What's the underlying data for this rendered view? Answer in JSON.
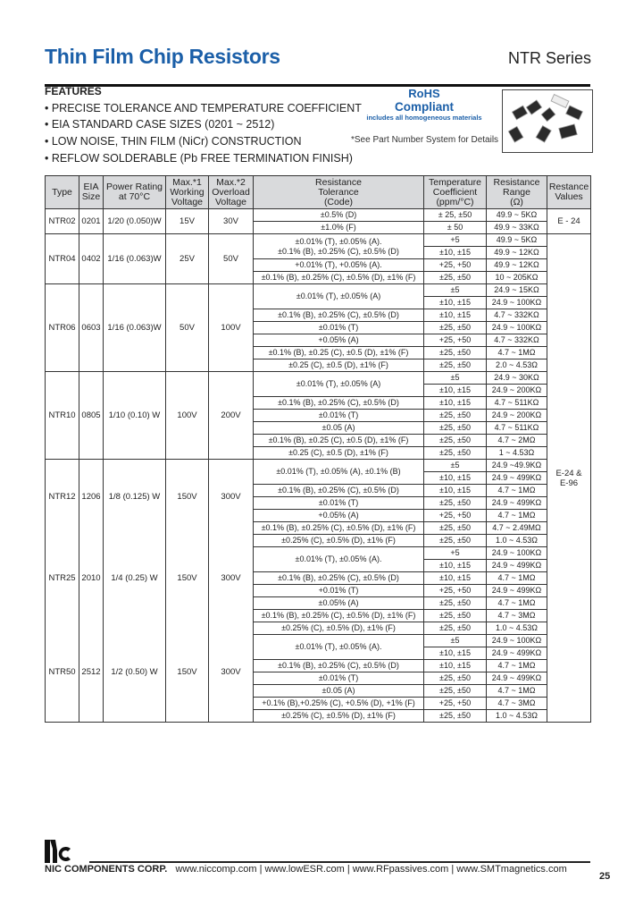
{
  "header": {
    "title": "Thin Film Chip Resistors",
    "series": "NTR Series"
  },
  "features": {
    "heading": "FEATURES",
    "items": [
      "• PRECISE TOLERANCE AND TEMPERATURE COEFFICIENT",
      "• EIA STANDARD CASE SIZES (0201 ~ 2512)",
      "• LOW NOISE, THIN FILM (NiCr) CONSTRUCTION",
      "• REFLOW SOLDERABLE (Pb FREE TERMINATION FINISH)"
    ]
  },
  "rohs": {
    "line1": "RoHS",
    "line2": "Compliant",
    "line3": "includes all homogeneous materials",
    "note": "*See Part Number System for Details",
    "color": "#1b5fa8"
  },
  "table": {
    "headers": [
      "Type",
      "EIA\nSize",
      "Power Rating\nat 70°C",
      "Max.*1\nWorking\nVoltage",
      "Max.*2\nOverload\nVoltage",
      "Resistance\nTolerance\n(Code)",
      "Temperature\nCoefficient\n(ppm/°C)",
      "Resistance\nRange\n(Ω)",
      "Restance\nValues"
    ],
    "values_column": [
      {
        "label": "E - 24",
        "applies_to": [
          "NTR02"
        ]
      },
      {
        "label": "E-24 &\nE-96",
        "applies_to": [
          "NTR04",
          "NTR06",
          "NTR10",
          "NTR12",
          "NTR25",
          "NTR50"
        ]
      }
    ],
    "groups": [
      {
        "type": "NTR02",
        "eia": "0201",
        "power": "1/20 (0.050)W",
        "wv": "15V",
        "ov": "30V",
        "tolerances": [
          {
            "code": "±0.5% (D)",
            "rows": [
              {
                "tc": "± 25, ±50",
                "range": "49.9 ~ 5KΩ"
              }
            ]
          },
          {
            "code": "±1.0% (F)",
            "rows": [
              {
                "tc": "± 50",
                "range": "49.9 ~ 33KΩ"
              }
            ]
          }
        ]
      },
      {
        "type": "NTR04",
        "eia": "0402",
        "power": "1/16 (0.063)W",
        "wv": "25V",
        "ov": "50V",
        "tolerances": [
          {
            "code": "±0.01% (T), ±0.05% (A).\n±0.1% (B), ±0.25% (C), ±0.5% (D)",
            "rows": [
              {
                "tc": "+5",
                "range": "49.9 ~ 5KΩ"
              },
              {
                "tc": "±10, ±15",
                "range": "49.9 ~ 12KΩ"
              }
            ]
          },
          {
            "code": "+0.01% (T), +0.05% (A).",
            "rows": [
              {
                "tc": "+25, +50",
                "range": "49.9 ~ 12KΩ"
              }
            ]
          },
          {
            "code": "±0.1% (B), ±0.25% (C), ±0.5% (D), ±1% (F)",
            "rows": [
              {
                "tc": "±25, ±50",
                "range": "10 ~ 205KΩ"
              }
            ]
          }
        ]
      },
      {
        "type": "NTR06",
        "eia": "0603",
        "power": "1/16 (0.063)W",
        "wv": "50V",
        "ov": "100V",
        "tolerances": [
          {
            "code": "±0.01% (T), ±0.05% (A)",
            "rows": [
              {
                "tc": "±5",
                "range": "24.9 ~ 15KΩ"
              },
              {
                "tc": "±10, ±15",
                "range": "24.9 ~ 100KΩ"
              }
            ]
          },
          {
            "code": "±0.1% (B), ±0.25% (C), ±0.5% (D)",
            "rows": [
              {
                "tc": "±10, ±15",
                "range": "4.7 ~ 332KΩ"
              }
            ]
          },
          {
            "code": "±0.01% (T)",
            "rows": [
              {
                "tc": "±25, ±50",
                "range": "24.9 ~ 100KΩ"
              }
            ]
          },
          {
            "code": "+0.05% (A)",
            "rows": [
              {
                "tc": "+25, +50",
                "range": "4.7 ~ 332KΩ"
              }
            ]
          },
          {
            "code": "±0.1% (B), ±0.25 (C), ±0.5 (D), ±1% (F)",
            "rows": [
              {
                "tc": "±25, ±50",
                "range": "4.7 ~ 1MΩ"
              }
            ]
          },
          {
            "code": "±0.25 (C), ±0.5 (D), ±1% (F)",
            "rows": [
              {
                "tc": "±25, ±50",
                "range": "2.0 ~ 4.53Ω"
              }
            ]
          }
        ]
      },
      {
        "type": "NTR10",
        "eia": "0805",
        "power": "1/10 (0.10) W",
        "wv": "100V",
        "ov": "200V",
        "tolerances": [
          {
            "code": "±0.01% (T), ±0.05% (A)",
            "rows": [
              {
                "tc": "±5",
                "range": "24.9 ~ 30KΩ"
              },
              {
                "tc": "±10, ±15",
                "range": "24.9 ~ 200KΩ"
              }
            ]
          },
          {
            "code": "±0.1% (B), ±0.25% (C), ±0.5% (D)",
            "rows": [
              {
                "tc": "±10, ±15",
                "range": "4.7 ~ 511KΩ"
              }
            ]
          },
          {
            "code": "±0.01% (T)",
            "rows": [
              {
                "tc": "±25, ±50",
                "range": "24.9 ~ 200KΩ"
              }
            ]
          },
          {
            "code": "±0.05 (A)",
            "rows": [
              {
                "tc": "±25, ±50",
                "range": "4.7 ~ 511KΩ"
              }
            ]
          },
          {
            "code": "±0.1% (B), ±0.25 (C), ±0.5 (D), ±1% (F)",
            "rows": [
              {
                "tc": "±25, ±50",
                "range": "4.7 ~ 2MΩ"
              }
            ]
          },
          {
            "code": "±0.25 (C), ±0.5 (D), ±1% (F)",
            "rows": [
              {
                "tc": "±25, ±50",
                "range": "1 ~ 4.53Ω"
              }
            ]
          }
        ]
      },
      {
        "type": "NTR12",
        "eia": "1206",
        "power": "1/8 (0.125) W",
        "wv": "150V",
        "ov": "300V",
        "tolerances": [
          {
            "code": "±0.01% (T), ±0.05% (A), ±0.1% (B)",
            "rows": [
              {
                "tc": "±5",
                "range": "24.9 ~49.9KΩ"
              },
              {
                "tc": "±10, ±15",
                "range": "24.9 ~ 499KΩ"
              }
            ]
          },
          {
            "code": "±0.1% (B), ±0.25% (C), ±0.5% (D)",
            "rows": [
              {
                "tc": "±10, ±15",
                "range": "4.7 ~ 1MΩ"
              }
            ]
          },
          {
            "code": "±0.01% (T)",
            "rows": [
              {
                "tc": "±25, ±50",
                "range": "24.9 ~ 499KΩ"
              }
            ]
          },
          {
            "code": "+0.05% (A)",
            "rows": [
              {
                "tc": "+25, +50",
                "range": "4.7 ~ 1MΩ"
              }
            ]
          },
          {
            "code": "±0.1% (B), ±0.25% (C), ±0.5% (D), ±1% (F)",
            "rows": [
              {
                "tc": "±25, ±50",
                "range": "4.7 ~ 2.49MΩ"
              }
            ]
          }
        ]
      },
      {
        "type": "NTR25",
        "eia": "2010",
        "power": "1/4 (0.25) W",
        "wv": "150V",
        "ov": "300V",
        "tolerances": [
          {
            "code": "±0.25% (C), ±0.5% (D), ±1% (F)",
            "rows": [
              {
                "tc": "±25, ±50",
                "range": "1.0 ~ 4.53Ω"
              }
            ]
          },
          {
            "code": "±0.01% (T), ±0.05% (A).",
            "rows": [
              {
                "tc": "+5",
                "range": "24.9 ~ 100KΩ"
              },
              {
                "tc": "±10, ±15",
                "range": "24.9 ~ 499KΩ"
              }
            ]
          },
          {
            "code": "±0.1% (B), ±0.25% (C), ±0.5% (D)",
            "rows": [
              {
                "tc": "±10, ±15",
                "range": "4.7 ~ 1MΩ"
              }
            ]
          },
          {
            "code": "+0.01% (T)",
            "rows": [
              {
                "tc": "+25, +50",
                "range": "24.9 ~ 499KΩ"
              }
            ]
          },
          {
            "code": "±0.05% (A)",
            "rows": [
              {
                "tc": "±25, ±50",
                "range": "4.7 ~ 1MΩ"
              }
            ]
          },
          {
            "code": "±0.1% (B), ±0.25% (C), ±0.5% (D), ±1% (F)",
            "rows": [
              {
                "tc": "±25, ±50",
                "range": "4.7 ~ 3MΩ"
              }
            ]
          }
        ]
      },
      {
        "type": "NTR50",
        "eia": "2512",
        "power": "1/2 (0.50) W",
        "wv": "150V",
        "ov": "300V",
        "tolerances": [
          {
            "code": "±0.25% (C), ±0.5% (D), ±1% (F)",
            "rows": [
              {
                "tc": "±25, ±50",
                "range": "1.0 ~ 4.53Ω"
              }
            ]
          },
          {
            "code": "±0.01% (T), ±0.05% (A).",
            "rows": [
              {
                "tc": "±5",
                "range": "24.9 ~ 100KΩ"
              },
              {
                "tc": "±10, ±15",
                "range": "24.9 ~ 499KΩ"
              }
            ]
          },
          {
            "code": "±0.1% (B), ±0.25% (C), ±0.5% (D)",
            "rows": [
              {
                "tc": "±10, ±15",
                "range": "4.7 ~ 1MΩ"
              }
            ]
          },
          {
            "code": "±0.01% (T)",
            "rows": [
              {
                "tc": "±25, ±50",
                "range": "24.9 ~ 499KΩ"
              }
            ]
          },
          {
            "code": "±0.05 (A)",
            "rows": [
              {
                "tc": "±25, ±50",
                "range": "4.7 ~ 1MΩ"
              }
            ]
          },
          {
            "code": "+0.1% (B),+0.25% (C), +0.5% (D), +1% (F)",
            "rows": [
              {
                "tc": "+25, +50",
                "range": "4.7 ~ 3MΩ"
              }
            ]
          },
          {
            "code": "±0.25% (C), ±0.5% (D), ±1% (F)",
            "rows": [
              {
                "tc": "±25, ±50",
                "range": "1.0 ~ 4.53Ω"
              }
            ]
          }
        ]
      }
    ]
  },
  "footer": {
    "logo": "nc",
    "company": "NIC COMPONENTS CORP.",
    "links": "www.niccomp.com  |  www.lowESR.com  |  www.RFpassives.com  |  www.SMTmagnetics.com",
    "page": "25"
  }
}
